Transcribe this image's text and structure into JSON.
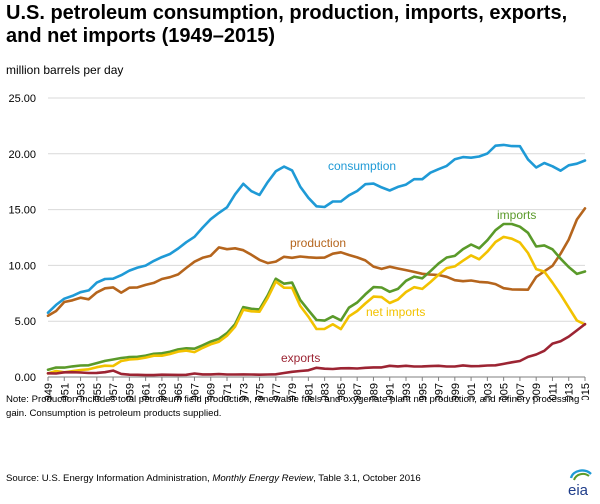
{
  "title": "U.S. petroleum consumption, production, imports, exports, and net imports (1949–2015)",
  "unit_label": "million barrels per day",
  "note": "Note: Production includes total petroleum field production, renewable fuels and oxygenate plant net production, and refinery processing gain. Consumption is petroleum products supplied.",
  "source_prefix": "Source: U.S. Energy Information Administration, ",
  "source_italic": "Monthly Energy Review",
  "source_suffix": ", Table 3.1, October 2016",
  "logo_text": "eia",
  "colors": {
    "consumption": "#1f9ad6",
    "production": "#b5651d",
    "imports": "#5a9a2a",
    "net_imports": "#f2c200",
    "exports": "#9c2433",
    "grid": "#d9d9d9",
    "axis": "#7f7f7f"
  },
  "chart_data": {
    "type": "line",
    "title": "U.S. petroleum consumption, production, imports, exports, and net imports (1949–2015)",
    "ylabel": "million barrels per day",
    "ylim": [
      0,
      25
    ],
    "yticks": [
      "0.00",
      "5.00",
      "10.00",
      "15.00",
      "20.00",
      "25.00"
    ],
    "grid": true,
    "xticks": [
      "1949",
      "1951",
      "1953",
      "1955",
      "1957",
      "1959",
      "1961",
      "1963",
      "1965",
      "1967",
      "1969",
      "1971",
      "1973",
      "1975",
      "1977",
      "1979",
      "1981",
      "1983",
      "1985",
      "1987",
      "1989",
      "1991",
      "1993",
      "1995",
      "1997",
      "1999",
      "2001",
      "2003",
      "2005",
      "2007",
      "2009",
      "2011",
      "2013",
      "2015"
    ],
    "x": [
      1949,
      1950,
      1951,
      1952,
      1953,
      1954,
      1955,
      1956,
      1957,
      1958,
      1959,
      1960,
      1961,
      1962,
      1963,
      1964,
      1965,
      1966,
      1967,
      1968,
      1969,
      1970,
      1971,
      1972,
      1973,
      1974,
      1975,
      1976,
      1977,
      1978,
      1979,
      1980,
      1981,
      1982,
      1983,
      1984,
      1985,
      1986,
      1987,
      1988,
      1989,
      1990,
      1991,
      1992,
      1993,
      1994,
      1995,
      1996,
      1997,
      1998,
      1999,
      2000,
      2001,
      2002,
      2003,
      2004,
      2005,
      2006,
      2007,
      2008,
      2009,
      2010,
      2011,
      2012,
      2013,
      2014,
      2015
    ],
    "series": [
      {
        "name": "consumption",
        "key": "consumption",
        "values": [
          5.76,
          6.46,
          7.02,
          7.27,
          7.6,
          7.76,
          8.46,
          8.78,
          8.81,
          9.12,
          9.53,
          9.8,
          9.98,
          10.4,
          10.74,
          11.02,
          11.51,
          12.08,
          12.56,
          13.39,
          14.14,
          14.7,
          15.21,
          16.37,
          17.31,
          16.65,
          16.32,
          17.46,
          18.43,
          18.85,
          18.51,
          17.06,
          16.06,
          15.3,
          15.23,
          15.73,
          15.73,
          16.28,
          16.67,
          17.28,
          17.33,
          16.99,
          16.71,
          17.03,
          17.24,
          17.72,
          17.72,
          18.31,
          18.62,
          18.92,
          19.52,
          19.7,
          19.65,
          19.76,
          20.03,
          20.73,
          20.8,
          20.69,
          20.68,
          19.5,
          18.77,
          19.18,
          18.88,
          18.49,
          18.97,
          19.11,
          19.4
        ]
      },
      {
        "name": "production",
        "key": "production",
        "values": [
          5.48,
          5.91,
          6.72,
          6.87,
          7.11,
          6.96,
          7.58,
          7.95,
          8.03,
          7.55,
          8.0,
          8.03,
          8.25,
          8.43,
          8.78,
          8.94,
          9.19,
          9.78,
          10.33,
          10.68,
          10.87,
          11.61,
          11.45,
          11.53,
          11.36,
          10.95,
          10.49,
          10.21,
          10.34,
          10.77,
          10.68,
          10.8,
          10.73,
          10.68,
          10.7,
          11.05,
          11.17,
          10.93,
          10.72,
          10.45,
          9.89,
          9.69,
          9.88,
          9.72,
          9.58,
          9.42,
          9.25,
          9.18,
          9.14,
          8.98,
          8.67,
          8.58,
          8.65,
          8.52,
          8.48,
          8.32,
          7.96,
          7.85,
          7.83,
          7.82,
          8.97,
          9.47,
          9.96,
          11.05,
          12.31,
          14.11,
          15.11
        ]
      },
      {
        "name": "imports",
        "key": "imports",
        "values": [
          0.65,
          0.85,
          0.84,
          0.95,
          1.03,
          1.05,
          1.25,
          1.44,
          1.57,
          1.7,
          1.78,
          1.81,
          1.92,
          2.08,
          2.12,
          2.26,
          2.47,
          2.57,
          2.54,
          2.84,
          3.17,
          3.42,
          3.93,
          4.74,
          6.26,
          6.11,
          6.06,
          7.31,
          8.81,
          8.36,
          8.46,
          6.91,
          5.99,
          5.11,
          5.05,
          5.44,
          5.07,
          6.22,
          6.68,
          7.4,
          8.06,
          8.02,
          7.63,
          7.89,
          8.62,
          9.0,
          8.84,
          9.48,
          10.16,
          10.71,
          10.85,
          11.46,
          11.87,
          11.53,
          12.26,
          13.15,
          13.71,
          13.71,
          13.47,
          12.92,
          11.69,
          11.79,
          11.44,
          10.6,
          9.86,
          9.24,
          9.45
        ]
      },
      {
        "name": "net imports",
        "key": "net_imports",
        "values": [
          0.32,
          0.54,
          0.42,
          0.52,
          0.63,
          0.69,
          0.88,
          1.01,
          0.99,
          1.43,
          1.57,
          1.61,
          1.74,
          1.91,
          1.91,
          2.06,
          2.28,
          2.37,
          2.23,
          2.61,
          2.93,
          3.16,
          3.7,
          4.52,
          6.03,
          5.89,
          5.85,
          7.09,
          8.56,
          8.0,
          7.99,
          6.37,
          5.4,
          4.3,
          4.31,
          4.72,
          4.29,
          5.44,
          5.91,
          6.59,
          7.2,
          7.16,
          6.63,
          6.94,
          7.62,
          8.05,
          7.89,
          8.5,
          9.16,
          9.76,
          9.91,
          10.42,
          10.9,
          10.55,
          11.24,
          12.1,
          12.55,
          12.39,
          12.04,
          11.11,
          9.67,
          9.44,
          8.45,
          7.39,
          6.24,
          5.06,
          4.71
        ]
      },
      {
        "name": "exports",
        "key": "exports",
        "values": [
          0.33,
          0.31,
          0.42,
          0.43,
          0.4,
          0.36,
          0.37,
          0.43,
          0.57,
          0.28,
          0.21,
          0.2,
          0.17,
          0.17,
          0.21,
          0.2,
          0.19,
          0.2,
          0.31,
          0.23,
          0.23,
          0.26,
          0.22,
          0.22,
          0.23,
          0.22,
          0.21,
          0.22,
          0.24,
          0.36,
          0.47,
          0.54,
          0.6,
          0.82,
          0.74,
          0.72,
          0.78,
          0.79,
          0.76,
          0.82,
          0.86,
          0.86,
          1.0,
          0.95,
          1.0,
          0.94,
          0.95,
          0.98,
          1.0,
          0.94,
          0.94,
          1.04,
          0.97,
          0.98,
          1.03,
          1.05,
          1.17,
          1.32,
          1.43,
          1.8,
          2.02,
          2.35,
          2.99,
          3.21,
          3.62,
          4.18,
          4.74
        ]
      }
    ],
    "annotations": [
      {
        "text": "consumption",
        "series": "consumption"
      },
      {
        "text": "production",
        "series": "production"
      },
      {
        "text": "imports",
        "series": "imports"
      },
      {
        "text": "net imports",
        "series": "net_imports"
      },
      {
        "text": "exports",
        "series": "exports"
      }
    ]
  }
}
